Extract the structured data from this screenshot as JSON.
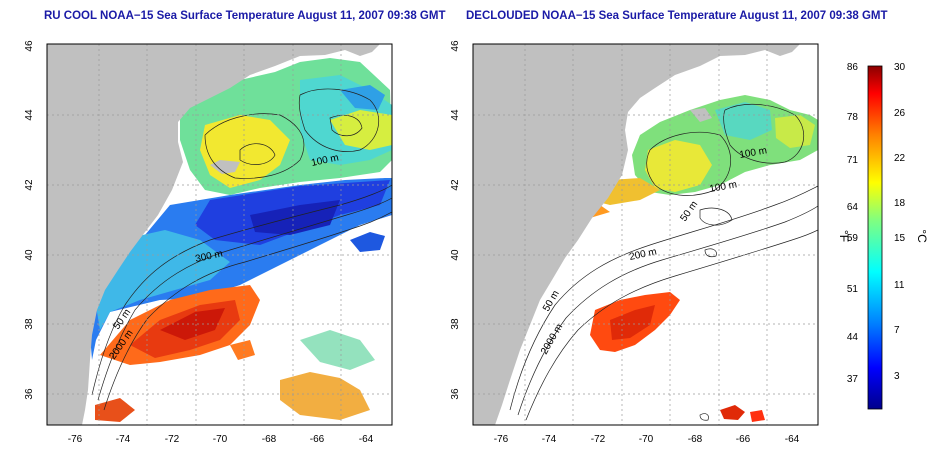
{
  "panels": [
    {
      "title": "RU COOL NOAA−15 Sea Surface Temperature August 11, 2007 09:38 GMT",
      "mode": "raw",
      "depth_labels": [
        "100 m",
        "300 m",
        "50 m",
        "2000 m"
      ]
    },
    {
      "title": "DECLOUDED NOAA−15 Sea Surface Temperature August 11, 2007 09:38 GMT",
      "mode": "declouded",
      "depth_labels": [
        "100 m",
        "100 m",
        "50 m",
        "200 m",
        "50 m",
        "2000 m"
      ]
    }
  ],
  "axes": {
    "lon_ticks": [
      "-76",
      "-74",
      "-72",
      "-70",
      "-68",
      "-66",
      "-64"
    ],
    "lat_ticks": [
      "46",
      "44",
      "42",
      "40",
      "38",
      "36"
    ]
  },
  "colorbar": {
    "fahrenheit_ticks": [
      "86",
      "78",
      "71",
      "64",
      "59",
      "51",
      "44",
      "37"
    ],
    "celsius_ticks": [
      "30",
      "26",
      "22",
      "18",
      "15",
      "11",
      "7",
      "3"
    ],
    "fahrenheit_label": "°F",
    "celsius_label": "°C"
  },
  "colors": {
    "land": "#c0c0c0",
    "title": "#1a1aa6",
    "grid": "#9a9a9a"
  }
}
